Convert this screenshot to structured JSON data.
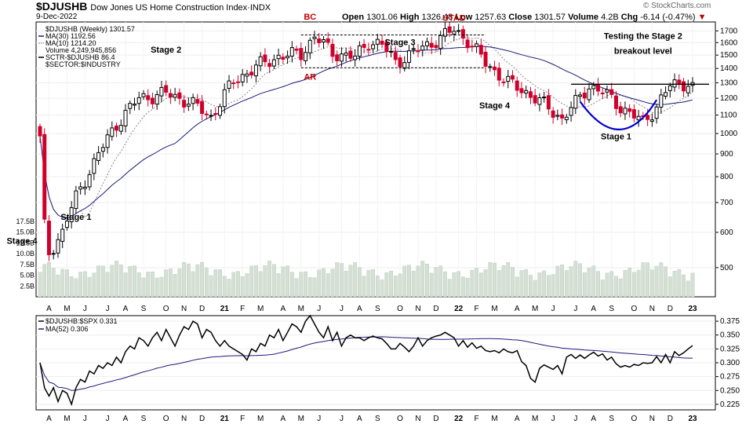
{
  "header": {
    "symbol": "$DJUSHB",
    "name": "Dow Jones US Home Construction Index",
    "exchange": "INDX",
    "date": "9-Dec-2022",
    "open_label": "Open",
    "open": "1301.06",
    "high_label": "High",
    "high": "1326.48",
    "low_label": "Low",
    "low": "1257.63",
    "close_label": "Close",
    "close": "1301.57",
    "volume_label": "Volume",
    "volume": "4.2B",
    "chg_label": "Chg",
    "chg": "-6.14 (-0.47%)",
    "brand": "© StockCharts.com",
    "colors": {
      "up": "#000000",
      "down": "#d0002b",
      "ma30": "#1a1a7a",
      "ma10": "#888888",
      "volume": "#d5e0d5",
      "annotation_red": "#c00000",
      "cup": "#0000cc"
    }
  },
  "chart_data": [
    {
      "type": "candlestick",
      "panel": "price",
      "scale": "log",
      "ylim": [
        430,
        1780
      ],
      "yticks": [
        500,
        600,
        700,
        800,
        900,
        1000,
        1100,
        1200,
        1300,
        1400,
        1500,
        1600,
        1700
      ],
      "x_labels": [
        {
          "i": 2,
          "label": "A"
        },
        {
          "i": 6,
          "label": "M"
        },
        {
          "i": 10,
          "label": "J"
        },
        {
          "i": 15,
          "label": "J"
        },
        {
          "i": 19,
          "label": "A"
        },
        {
          "i": 23,
          "label": "S"
        },
        {
          "i": 28,
          "label": "O"
        },
        {
          "i": 32,
          "label": "N"
        },
        {
          "i": 36,
          "label": "D"
        },
        {
          "i": 41,
          "label": "21"
        },
        {
          "i": 45,
          "label": "F"
        },
        {
          "i": 49,
          "label": "M"
        },
        {
          "i": 54,
          "label": "A"
        },
        {
          "i": 58,
          "label": "M"
        },
        {
          "i": 62,
          "label": "J"
        },
        {
          "i": 67,
          "label": "J"
        },
        {
          "i": 71,
          "label": "A"
        },
        {
          "i": 75,
          "label": "S"
        },
        {
          "i": 80,
          "label": "O"
        },
        {
          "i": 84,
          "label": "N"
        },
        {
          "i": 88,
          "label": "D"
        },
        {
          "i": 93,
          "label": "22"
        },
        {
          "i": 97,
          "label": "F"
        },
        {
          "i": 101,
          "label": "M"
        },
        {
          "i": 106,
          "label": "A"
        },
        {
          "i": 110,
          "label": "M"
        },
        {
          "i": 114,
          "label": "J"
        },
        {
          "i": 119,
          "label": "J"
        },
        {
          "i": 123,
          "label": "A"
        },
        {
          "i": 127,
          "label": "S"
        },
        {
          "i": 132,
          "label": "O"
        },
        {
          "i": 136,
          "label": "N"
        },
        {
          "i": 140,
          "label": "D"
        },
        {
          "i": 145,
          "label": "23"
        }
      ],
      "legend": [
        {
          "text": "$DJUSHB (Weekly) 1301.57"
        },
        {
          "text": "MA(30) 1192.56"
        },
        {
          "text": "MA(10) 1214.20"
        },
        {
          "text": "Volume 4,249,945,856"
        },
        {
          "text": "SCTR-$DJUSHB 86.4"
        },
        {
          "text": "$SECTOR:$INDUSTRY"
        }
      ],
      "annotations": [
        {
          "text": "BC",
          "i": 60,
          "price": 1800,
          "color": "red"
        },
        {
          "text": "AR",
          "i": 60,
          "price": 1320,
          "color": "red"
        },
        {
          "text": "UTAD",
          "i": 92,
          "price": 1790,
          "color": "red"
        },
        {
          "text": "Stage 2",
          "i": 28,
          "price": 1520
        },
        {
          "text": "Stage 3",
          "i": 80,
          "price": 1580
        },
        {
          "text": "Stage 4",
          "i": 101,
          "price": 1140
        },
        {
          "text": "Stage 1",
          "i": 8,
          "price": 640
        },
        {
          "text": "Stage 1",
          "i": 128,
          "price": 970
        },
        {
          "text": "Stage 4",
          "i": -4,
          "price": 565
        },
        {
          "text": "Testing the Stage 2",
          "i": 134,
          "price": 1630
        },
        {
          "text": "breakout level",
          "i": 134,
          "price": 1510
        }
      ],
      "volume_axis": {
        "labels": [
          "2.5B",
          "5.0B",
          "7.5B",
          "10.0B",
          "12.5B",
          "15.0B",
          "17.5B"
        ],
        "values": [
          2.5,
          5.0,
          7.5,
          10.0,
          12.5,
          15.0,
          17.5
        ]
      }
    },
    {
      "type": "line",
      "panel": "relative_strength",
      "ylim": [
        0.215,
        0.385
      ],
      "yticks": [
        0.225,
        0.25,
        0.275,
        0.3,
        0.325,
        0.35,
        0.375
      ],
      "ytick_labels": [
        "0.225",
        "0.250",
        "0.275",
        "0.300",
        "0.325",
        "0.350",
        "0.375"
      ],
      "legend": [
        {
          "text": "$DJUSHB:$SPX 0.331"
        },
        {
          "text": "MA(52) 0.306"
        }
      ],
      "series": [
        {
          "values": [
            0.3,
            0.255,
            0.24,
            0.255,
            0.23,
            0.25,
            0.245,
            0.225,
            0.255,
            0.27,
            0.265,
            0.285,
            0.28,
            0.295,
            0.29,
            0.3,
            0.295,
            0.31,
            0.3,
            0.32,
            0.33,
            0.325,
            0.345,
            0.34,
            0.33,
            0.345,
            0.355,
            0.34,
            0.36,
            0.345,
            0.33,
            0.35,
            0.365,
            0.36,
            0.375,
            0.37,
            0.345,
            0.36,
            0.355,
            0.34,
            0.33,
            0.34,
            0.33,
            0.325,
            0.32,
            0.315,
            0.305,
            0.325,
            0.32,
            0.335,
            0.33,
            0.35,
            0.345,
            0.36,
            0.34,
            0.355,
            0.37,
            0.365,
            0.355,
            0.375,
            0.385,
            0.37,
            0.355,
            0.345,
            0.365,
            0.34,
            0.355,
            0.33,
            0.345,
            0.35,
            0.345,
            0.345,
            0.34,
            0.345,
            0.348,
            0.345,
            0.343,
            0.335,
            0.325,
            0.325,
            0.335,
            0.328,
            0.32,
            0.33,
            0.345,
            0.33,
            0.34,
            0.345,
            0.348,
            0.35,
            0.355,
            0.35,
            0.345,
            0.33,
            0.34,
            0.328,
            0.336,
            0.326,
            0.33,
            0.322,
            0.32,
            0.322,
            0.318,
            0.325,
            0.32,
            0.318,
            0.322,
            0.302,
            0.295,
            0.272,
            0.265,
            0.29,
            0.296,
            0.292,
            0.288,
            0.295,
            0.28,
            0.31,
            0.315,
            0.308,
            0.314,
            0.308,
            0.314,
            0.319,
            0.312,
            0.316,
            0.305,
            0.31,
            0.298,
            0.292,
            0.295,
            0.292,
            0.297,
            0.295,
            0.3,
            0.299,
            0.3,
            0.311,
            0.3,
            0.315,
            0.3,
            0.32,
            0.313,
            0.318,
            0.325,
            0.331
          ]
        },
        {
          "values": []
        }
      ]
    }
  ]
}
